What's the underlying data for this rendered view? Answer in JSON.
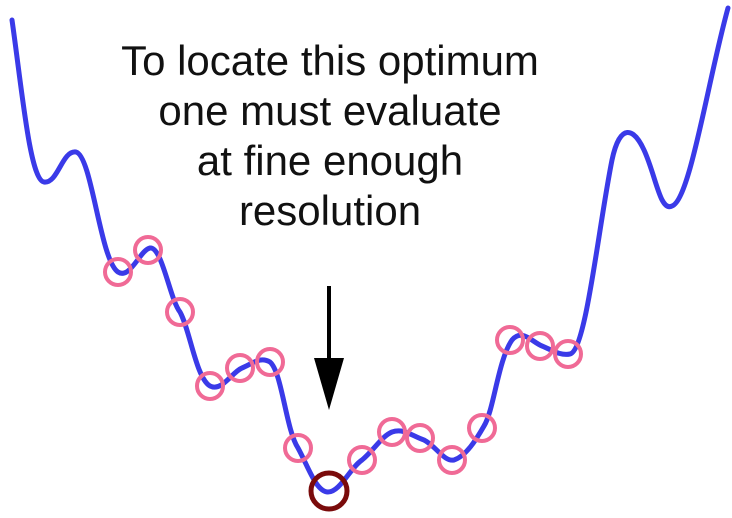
{
  "annotation": {
    "lines": [
      "To locate this optimum",
      "one must evaluate",
      "at fine enough",
      "resolution"
    ]
  },
  "colors": {
    "curve": "#3a3ae8",
    "sample_marker": "#f06a96",
    "optimum_marker": "#7a0b0b",
    "arrow": "#000000",
    "text": "#111111"
  }
}
